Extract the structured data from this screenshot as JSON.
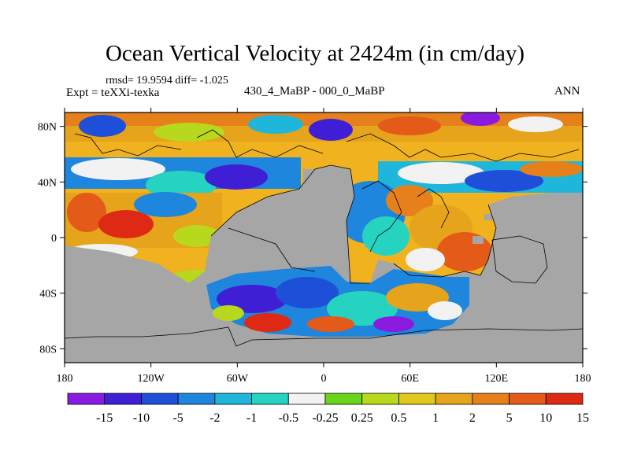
{
  "title": "Ocean Vertical Velocity at 2424m (in cm/day)",
  "stats": "rmsd= 19.9594  diff= -1.025",
  "expt": "Expt = teXXi-texka",
  "subtitle": "430_4_MaBP - 000_0_MaBP",
  "season": "ANN",
  "y_ticks": [
    {
      "lat": 80,
      "label": "80N"
    },
    {
      "lat": 40,
      "label": "40N"
    },
    {
      "lat": 0,
      "label": "0"
    },
    {
      "lat": -40,
      "label": "40S"
    },
    {
      "lat": -80,
      "label": "80S"
    }
  ],
  "x_ticks": [
    {
      "lon": -180,
      "label": "180"
    },
    {
      "lon": -120,
      "label": "120W"
    },
    {
      "lon": -60,
      "label": "60W"
    },
    {
      "lon": 0,
      "label": "0"
    },
    {
      "lon": 60,
      "label": "60E"
    },
    {
      "lon": 120,
      "label": "120E"
    },
    {
      "lon": 180,
      "label": "180"
    }
  ],
  "colorbar": {
    "colors": [
      "#8a1ae0",
      "#3f1fd6",
      "#1e4fd8",
      "#1e86dc",
      "#1fb6dc",
      "#26d3c0",
      "#f2f2f2",
      "#6ad41c",
      "#b8d81e",
      "#e0c81e",
      "#e6a31c",
      "#e6801a",
      "#e45a18",
      "#de2a14"
    ],
    "labels": [
      "-15",
      "-10",
      "-5",
      "-2",
      "-1",
      "-0.5",
      "-0.25",
      "0.25",
      "0.5",
      "1",
      "2",
      "5",
      "10",
      "15"
    ]
  },
  "style": {
    "land_color": "#a6a6a6",
    "coast_color": "#000000"
  }
}
